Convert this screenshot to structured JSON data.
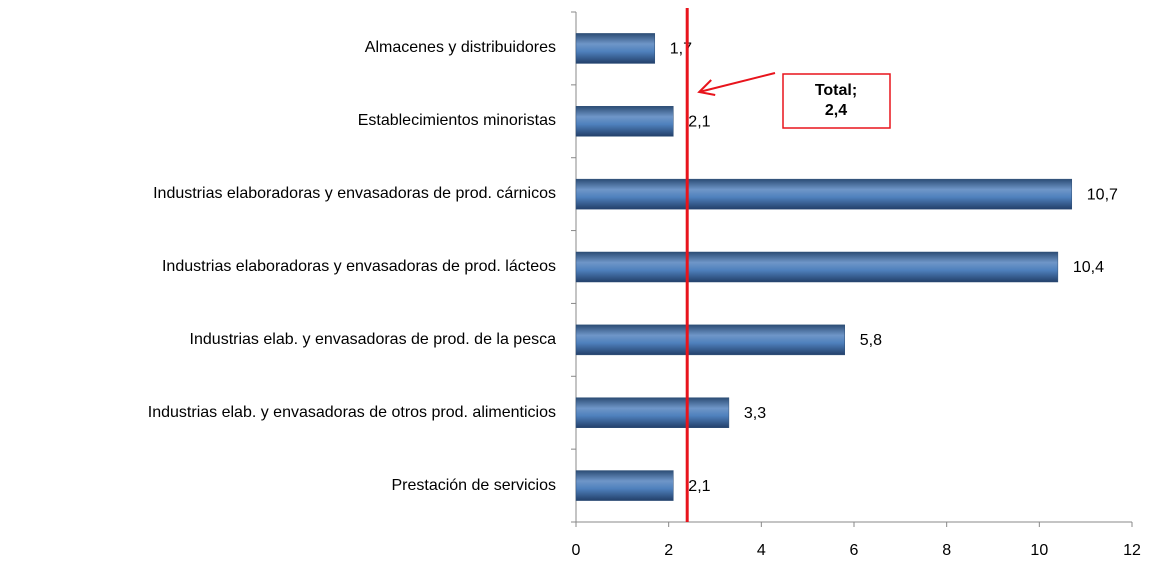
{
  "chart_data": {
    "type": "hbar",
    "categories": [
      "Almacenes y distribuidores",
      "Establecimientos minoristas",
      "Industrias elaboradoras y envasadoras de prod. cárnicos",
      "Industrias elaboradoras y envasadoras de prod. lácteos",
      "Industrias elab. y envasadoras de prod. de la pesca",
      "Industrias elab. y envasadoras de otros prod. alimenticios",
      "Prestación de servicios"
    ],
    "values": [
      1.7,
      2.1,
      10.7,
      10.4,
      5.8,
      3.3,
      2.1
    ],
    "value_labels": [
      "1,7",
      "2,1",
      "10,7",
      "10,4",
      "5,8",
      "3,3",
      "2,1"
    ],
    "color": "#4f81bd",
    "xlim": [
      0,
      12
    ],
    "xticks": [
      0,
      2,
      4,
      6,
      8,
      10,
      12
    ],
    "reference_line": {
      "value": 2.4,
      "label": "Total;",
      "value_label": "2,4",
      "color": "#e8141c"
    }
  }
}
